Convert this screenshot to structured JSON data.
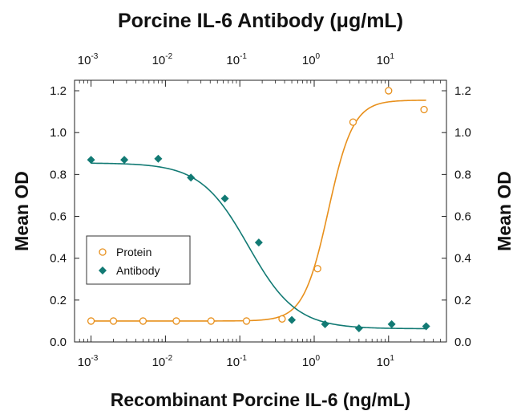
{
  "chart_data": {
    "type": "scatter",
    "title_top": "Porcine IL-6 Antibody (μg/mL)",
    "xlabel": "Recombinant Porcine IL-6 (ng/mL)",
    "ylabel_left": "Mean OD",
    "ylabel_right": "Mean OD",
    "x_scale": "log",
    "xlim": [
      0.0006,
      60
    ],
    "ylim": [
      0,
      1.25
    ],
    "x_ticks": [
      {
        "value": 0.001,
        "base": "10",
        "exp": "-3"
      },
      {
        "value": 0.01,
        "base": "10",
        "exp": "-2"
      },
      {
        "value": 0.1,
        "base": "10",
        "exp": "-1"
      },
      {
        "value": 1,
        "base": "10",
        "exp": "0"
      },
      {
        "value": 10,
        "base": "10",
        "exp": "1"
      }
    ],
    "y_ticks": [
      "0.0",
      "0.2",
      "0.4",
      "0.6",
      "0.8",
      "1.0",
      "1.2"
    ],
    "legend_position": "left-middle",
    "series": [
      {
        "name": "Protein",
        "marker": "open-circle",
        "color": "#E8901C",
        "points": [
          {
            "x": 0.001,
            "y": 0.1
          },
          {
            "x": 0.002,
            "y": 0.1
          },
          {
            "x": 0.005,
            "y": 0.1
          },
          {
            "x": 0.014,
            "y": 0.1
          },
          {
            "x": 0.041,
            "y": 0.1
          },
          {
            "x": 0.123,
            "y": 0.1
          },
          {
            "x": 0.37,
            "y": 0.11
          },
          {
            "x": 1.11,
            "y": 0.35
          },
          {
            "x": 3.33,
            "y": 1.05
          },
          {
            "x": 10,
            "y": 1.2
          },
          {
            "x": 30,
            "y": 1.11
          }
        ],
        "fit": {
          "bottom": 0.1,
          "top": 1.155,
          "ec50": 1.55,
          "hill": 2.6
        }
      },
      {
        "name": "Antibody",
        "marker": "filled-diamond",
        "color": "#127A74",
        "points": [
          {
            "x": 0.001,
            "y": 0.87
          },
          {
            "x": 0.0028,
            "y": 0.87
          },
          {
            "x": 0.008,
            "y": 0.875
          },
          {
            "x": 0.022,
            "y": 0.785
          },
          {
            "x": 0.063,
            "y": 0.685
          },
          {
            "x": 0.18,
            "y": 0.475
          },
          {
            "x": 0.5,
            "y": 0.105
          },
          {
            "x": 1.4,
            "y": 0.085
          },
          {
            "x": 4,
            "y": 0.065
          },
          {
            "x": 11,
            "y": 0.085
          },
          {
            "x": 32,
            "y": 0.075
          }
        ],
        "fit": {
          "bottom": 0.063,
          "top": 0.855,
          "ec50": 0.13,
          "hill": -1.35
        }
      }
    ],
    "colors": {
      "protein": "#E8901C",
      "antibody": "#127A74",
      "axis": "#222222"
    }
  }
}
